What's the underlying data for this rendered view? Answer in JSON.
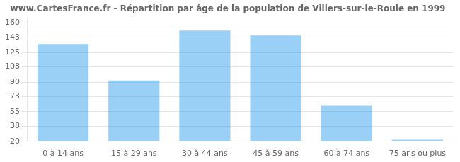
{
  "chart_data": {
    "type": "bar",
    "title": "www.CartesFrance.fr - Répartition par âge de la population de Villers-sur-le-Roule en 1999",
    "categories": [
      "0 à 14 ans",
      "15 à 29 ans",
      "30 à 44 ans",
      "45 à 59 ans",
      "60 à 74 ans",
      "75 ans ou plus"
    ],
    "values": [
      135,
      92,
      151,
      145,
      62,
      22
    ],
    "ylim": [
      20,
      165
    ],
    "yticks": [
      20,
      38,
      55,
      73,
      90,
      108,
      125,
      143,
      160
    ],
    "grid": true
  }
}
